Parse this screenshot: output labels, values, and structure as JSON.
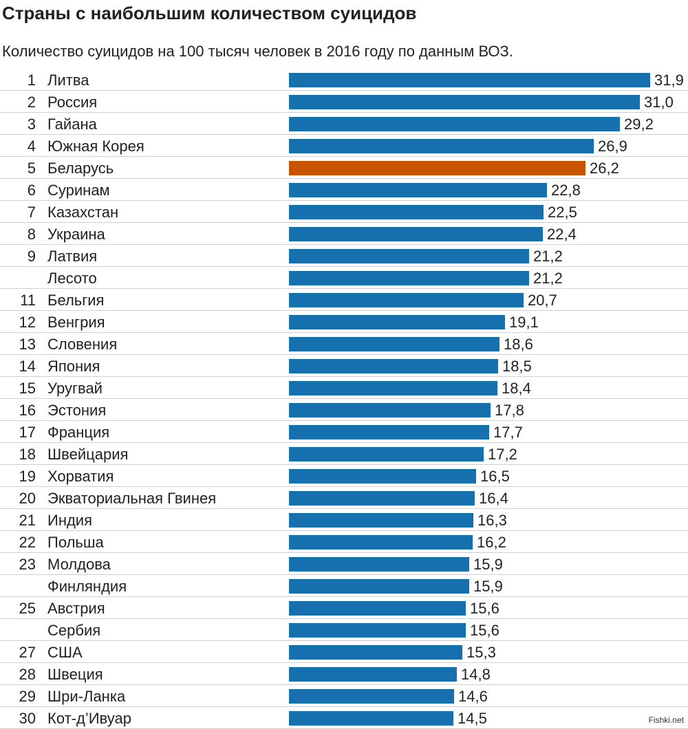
{
  "title": "Страны с наибольшим количеством суицидов",
  "subtitle": "Количество суицидов на 100 тысяч человек в 2016 году по данным ВОЗ.",
  "watermark": "Fishki.net",
  "colors": {
    "bar": "#1570ad",
    "highlight": "#c85400"
  },
  "chart_data": {
    "type": "bar",
    "orientation": "horizontal",
    "xlim": [
      0,
      31.9
    ],
    "grid": false,
    "highlight_index": 4,
    "ranks": [
      "1",
      "2",
      "3",
      "4",
      "5",
      "6",
      "7",
      "8",
      "9",
      "",
      "11",
      "12",
      "13",
      "14",
      "15",
      "16",
      "17",
      "18",
      "19",
      "20",
      "21",
      "22",
      "23",
      "",
      "25",
      "",
      "27",
      "28",
      "29",
      "30"
    ],
    "categories": [
      "Литва",
      "Россия",
      "Гайана",
      "Южная Корея",
      "Беларусь",
      "Суринам",
      "Казахстан",
      "Украина",
      "Латвия",
      "Лесото",
      "Бельгия",
      "Венгрия",
      "Словения",
      "Япония",
      "Уругвай",
      "Эстония",
      "Франция",
      "Швейцария",
      "Хорватия",
      "Экваториальная Гвинея",
      "Индия",
      "Польша",
      "Молдова",
      "Финляндия",
      "Австрия",
      "Сербия",
      "США",
      "Швеция",
      "Шри-Ланка",
      "Кот-д’Ивуар"
    ],
    "values": [
      31.9,
      31.0,
      29.2,
      26.9,
      26.2,
      22.8,
      22.5,
      22.4,
      21.2,
      21.2,
      20.7,
      19.1,
      18.6,
      18.5,
      18.4,
      17.8,
      17.7,
      17.2,
      16.5,
      16.4,
      16.3,
      16.2,
      15.9,
      15.9,
      15.6,
      15.6,
      15.3,
      14.8,
      14.6,
      14.5
    ],
    "value_labels": [
      "31,9",
      "31,0",
      "29,2",
      "26,9",
      "26,2",
      "22,8",
      "22,5",
      "22,4",
      "21,2",
      "21,2",
      "20,7",
      "19,1",
      "18,6",
      "18,5",
      "18,4",
      "17,8",
      "17,7",
      "17,2",
      "16,5",
      "16,4",
      "16,3",
      "16,2",
      "15,9",
      "15,9",
      "15,6",
      "15,6",
      "15,3",
      "14,8",
      "14,6",
      "14,5"
    ]
  }
}
